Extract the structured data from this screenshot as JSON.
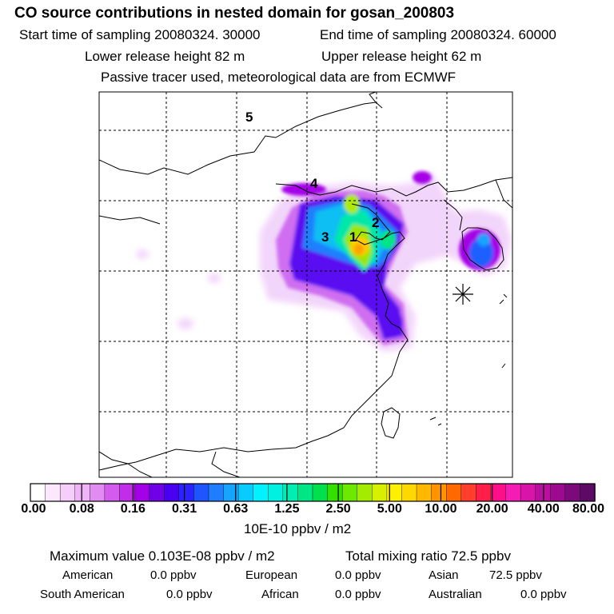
{
  "header": {
    "title": "CO  source contributions in nested domain for gosan_200803",
    "start_time": "Start time of sampling 20080324. 30000",
    "end_time": "End time of sampling 20080324. 60000",
    "lower_release": "Lower release height   82 m",
    "upper_release": "Upper release height   62 m",
    "tracer_note": "Passive tracer used, meteorological data are from ECMWF"
  },
  "map": {
    "region_labels": [
      "1",
      "2",
      "3",
      "4",
      "5"
    ],
    "receptor_marker": "asterisk-receptor-icon"
  },
  "colorbar": {
    "ticks": [
      "0.00",
      "0.08",
      "0.16",
      "0.31",
      "0.63",
      "1.25",
      "2.50",
      "5.00",
      "10.00",
      "20.00",
      "40.00",
      "80.00"
    ],
    "unit": "10E-10 ppbv / m2",
    "colors": [
      "#ffffff",
      "#fbe8fd",
      "#f5cefa",
      "#eeb4f7",
      "#e28cf3",
      "#d35cef",
      "#c02ee9",
      "#a300e8",
      "#7000e8",
      "#4a00f0",
      "#2a22ff",
      "#1f55ff",
      "#1f7dff",
      "#17a4ff",
      "#08cbff",
      "#00f2ff",
      "#00f0e2",
      "#00edb4",
      "#00e585",
      "#00e04e",
      "#33e000",
      "#6de800",
      "#a3ec00",
      "#d7ef00",
      "#ffef00",
      "#ffd800",
      "#ffb800",
      "#ff9300",
      "#ff6900",
      "#ff3e2c",
      "#ff1d4a",
      "#ff0e8a",
      "#f41cb3",
      "#d814aa",
      "#ba0e9e",
      "#9c0a8f",
      "#7c0a7c",
      "#5c0a66"
    ]
  },
  "stats": {
    "max_value": "Maximum value  0.103E-08 ppbv / m2",
    "total": "Total mixing ratio       72.5 ppbv",
    "american": "American",
    "american_val": "0.0 ppbv",
    "european": "European",
    "european_val": "0.0 ppbv",
    "asian": "Asian",
    "asian_val": "72.5 ppbv",
    "south_american": "South American",
    "south_american_val": "0.0 ppbv",
    "african": "African",
    "african_val": "0.0 ppbv",
    "australian": "Australian",
    "australian_val": "0.0 ppbv"
  }
}
